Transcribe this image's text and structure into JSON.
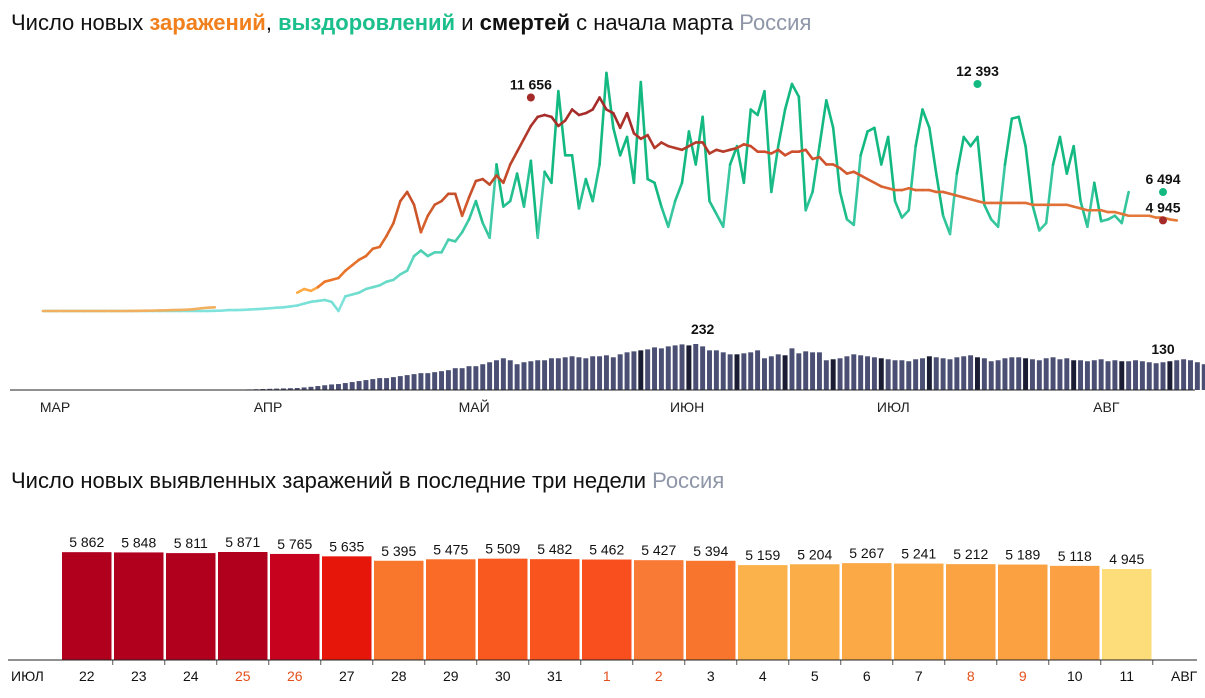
{
  "chart1": {
    "title_pre": "Число новых ",
    "title_infections": "заражений",
    "title_comma": ", ",
    "title_recoveries": "выздоровлений",
    "title_and": " и ",
    "title_deaths": "смертей",
    "title_post": " с начала марта",
    "region": "Россия"
  },
  "chart2": {
    "title": "Число новых выявленных заражений в последние три недели",
    "region": "Россия"
  },
  "colors": {
    "infections": "#e8722a",
    "infections_peak": "#a52a2a",
    "recoveries": "#14b982",
    "recoveries_light": "#7fe3dc",
    "deaths_bar": "#4a4f73",
    "deaths_bar_dark": "#1a1d33",
    "weekend_label": "#e4501b"
  },
  "chart_data": [
    {
      "type": "line",
      "title": "Число новых заражений, выздоровлений и смертей с начала марта",
      "x_ticks": [
        "МАР",
        "АПР",
        "МАЙ",
        "ИЮН",
        "ИЮЛ",
        "АВГ"
      ],
      "x_range": [
        "2020-03-01",
        "2020-08-11"
      ],
      "annotations": [
        {
          "series": "заражения",
          "date": "2020-05-11",
          "label": "11 656",
          "value": 11656
        },
        {
          "series": "выздоровления",
          "date": "2020-07-15",
          "label": "12 393",
          "value": 12393
        },
        {
          "series": "выздоровления",
          "date": "2020-08-11",
          "label": "6 494",
          "value": 6494
        },
        {
          "series": "заражения",
          "date": "2020-08-11",
          "label": "4 945",
          "value": 4945
        },
        {
          "series": "смерти",
          "date": "2020-06-05",
          "label": "232",
          "value": 232
        },
        {
          "series": "смерти",
          "date": "2020-08-11",
          "label": "130",
          "value": 130
        }
      ],
      "series": [
        {
          "name": "заражения",
          "start_date": "2020-03-01",
          "values": [
            0,
            0,
            0,
            0,
            0,
            0,
            0,
            0,
            0,
            0,
            0,
            0,
            0,
            5,
            10,
            15,
            20,
            30,
            40,
            50,
            60,
            70,
            100,
            150,
            180,
            200,
            230,
            300,
            350,
            380,
            450,
            520,
            600,
            400,
            700,
            550,
            800,
            1000,
            1200,
            1100,
            1300,
            1600,
            1700,
            1800,
            2200,
            2500,
            2800,
            3000,
            3400,
            3500,
            4100,
            4800,
            6000,
            6500,
            5800,
            4300,
            5200,
            5800,
            6000,
            6400,
            6400,
            5200,
            6200,
            7100,
            7200,
            6900,
            7400,
            7000,
            8000,
            8700,
            9400,
            10100,
            10600,
            10700,
            10600,
            10100,
            10400,
            11000,
            10700,
            10800,
            11000,
            11656,
            11000,
            10800,
            10000,
            10800,
            9700,
            9400,
            9600,
            8900,
            9200,
            9000,
            8900,
            8800,
            9000,
            9200,
            9200,
            8600,
            8800,
            8700,
            8800,
            8900,
            9100,
            9000,
            8700,
            8700,
            8600,
            8800,
            8500,
            8700,
            8700,
            8800,
            8300,
            8400,
            8000,
            8000,
            7800,
            7500,
            7600,
            7400,
            7200,
            7000,
            6800,
            6700,
            6600,
            6600,
            6700,
            6600,
            6600,
            6600,
            6500,
            6500,
            6400,
            6300,
            6200,
            6100,
            6000,
            5900,
            5900,
            5900,
            5900,
            5900,
            5900,
            5900,
            5800,
            5800,
            5800,
            5800,
            5800,
            5800,
            5700,
            5600,
            5500,
            5500,
            5500,
            5400,
            5400,
            5300,
            5200,
            5200,
            5200,
            5200,
            5100,
            5100,
            5000,
            4945
          ]
        },
        {
          "name": "выздоровления",
          "start_date": "2020-03-01",
          "values": [
            0,
            0,
            0,
            0,
            0,
            0,
            0,
            0,
            0,
            0,
            0,
            0,
            0,
            0,
            0,
            0,
            0,
            0,
            0,
            0,
            0,
            0,
            0,
            0,
            0,
            10,
            20,
            50,
            50,
            60,
            80,
            100,
            120,
            150,
            180,
            200,
            250,
            300,
            400,
            500,
            550,
            600,
            500,
            0,
            800,
            900,
            1000,
            1200,
            1300,
            1400,
            1600,
            1700,
            2000,
            2200,
            3000,
            3300,
            3000,
            3200,
            3200,
            3900,
            3800,
            4300,
            5000,
            6000,
            4800,
            4000,
            8000,
            5700,
            6000,
            7500,
            5700,
            8200,
            4000,
            7600,
            7000,
            12000,
            8500,
            8500,
            5600,
            7200,
            6000,
            8000,
            13000,
            10000,
            8500,
            9500,
            7000,
            12500,
            7200,
            7000,
            5700,
            4600,
            6000,
            7000,
            9800,
            8000,
            10600,
            6000,
            5300,
            4600,
            8000,
            9000,
            7000,
            11000,
            10700,
            12000,
            6500,
            9000,
            11000,
            12393,
            11700,
            5500,
            6500,
            9000,
            11500,
            10000,
            6500,
            5000,
            4700,
            8500,
            9800,
            10000,
            8000,
            9500,
            6000,
            5100,
            5500,
            9000,
            11000,
            10000,
            7500,
            5200,
            4200,
            7500,
            9500,
            9000,
            9500,
            5800,
            5000,
            4600,
            8000,
            10500,
            10600,
            9000,
            5800,
            4400,
            4800,
            8000,
            9500,
            7500,
            9000,
            6000,
            4600,
            7000,
            4900,
            5000,
            5200,
            4800,
            6494
          ]
        },
        {
          "name": "смерти",
          "start_date": "2020-03-01",
          "values": [
            0,
            0,
            0,
            0,
            0,
            0,
            0,
            0,
            0,
            0,
            0,
            0,
            0,
            0,
            0,
            0,
            0,
            0,
            0,
            0,
            0,
            0,
            0,
            0,
            0,
            1,
            1,
            2,
            2,
            2,
            3,
            4,
            5,
            6,
            7,
            8,
            9,
            10,
            13,
            16,
            20,
            24,
            28,
            30,
            35,
            40,
            45,
            50,
            55,
            60,
            60,
            65,
            70,
            75,
            80,
            85,
            85,
            90,
            95,
            100,
            110,
            110,
            120,
            120,
            130,
            140,
            150,
            160,
            150,
            130,
            140,
            145,
            150,
            150,
            160,
            160,
            165,
            170,
            165,
            160,
            170,
            170,
            175,
            165,
            180,
            190,
            195,
            200,
            205,
            215,
            210,
            220,
            225,
            230,
            225,
            232,
            220,
            200,
            200,
            190,
            180,
            180,
            185,
            190,
            200,
            160,
            170,
            180,
            175,
            210,
            185,
            195,
            190,
            190,
            150,
            155,
            160,
            170,
            180,
            175,
            170,
            165,
            160,
            155,
            150,
            150,
            145,
            155,
            160,
            170,
            165,
            160,
            155,
            165,
            170,
            175,
            165,
            160,
            145,
            150,
            160,
            165,
            165,
            160,
            155,
            150,
            160,
            165,
            155,
            160,
            150,
            150,
            145,
            150,
            155,
            145,
            150,
            145,
            145,
            150,
            145,
            140,
            135,
            140,
            145,
            150,
            155,
            150,
            140,
            130
          ]
        }
      ]
    },
    {
      "type": "bar",
      "title": "Число новых выявленных заражений в последние три недели",
      "x_start_label": "ИЮЛ",
      "x_end_label": "АВГ",
      "categories": [
        "22",
        "23",
        "24",
        "25",
        "26",
        "27",
        "28",
        "29",
        "30",
        "31",
        "1",
        "2",
        "3",
        "4",
        "5",
        "6",
        "7",
        "8",
        "9",
        "10",
        "11"
      ],
      "values": [
        5862,
        5848,
        5811,
        5871,
        5765,
        5635,
        5395,
        5475,
        5509,
        5482,
        5462,
        5427,
        5394,
        5159,
        5204,
        5267,
        5241,
        5212,
        5189,
        5118,
        4945
      ],
      "labels": [
        "5 862",
        "5 848",
        "5 811",
        "5 871",
        "5 765",
        "5 635",
        "5 395",
        "5 475",
        "5 509",
        "5 482",
        "5 462",
        "5 427",
        "5 394",
        "5 159",
        "5 204",
        "5 267",
        "5 241",
        "5 212",
        "5 189",
        "5 118",
        "4 945"
      ],
      "weekend": [
        false,
        false,
        false,
        true,
        true,
        false,
        false,
        false,
        false,
        false,
        true,
        true,
        false,
        false,
        false,
        false,
        false,
        true,
        true,
        false,
        false
      ],
      "bar_colors": [
        "#b0001e",
        "#b0001e",
        "#b0001e",
        "#b0001e",
        "#c7021e",
        "#e6170a",
        "#f8772c",
        "#f96b27",
        "#f9581f",
        "#f9531e",
        "#f94f1f",
        "#f97a34",
        "#f8752e",
        "#fbb24b",
        "#fbae48",
        "#fba846",
        "#fba845",
        "#fba343",
        "#fba142",
        "#fca044",
        "#fcdd7a"
      ],
      "ylim": [
        0,
        6000
      ]
    }
  ]
}
